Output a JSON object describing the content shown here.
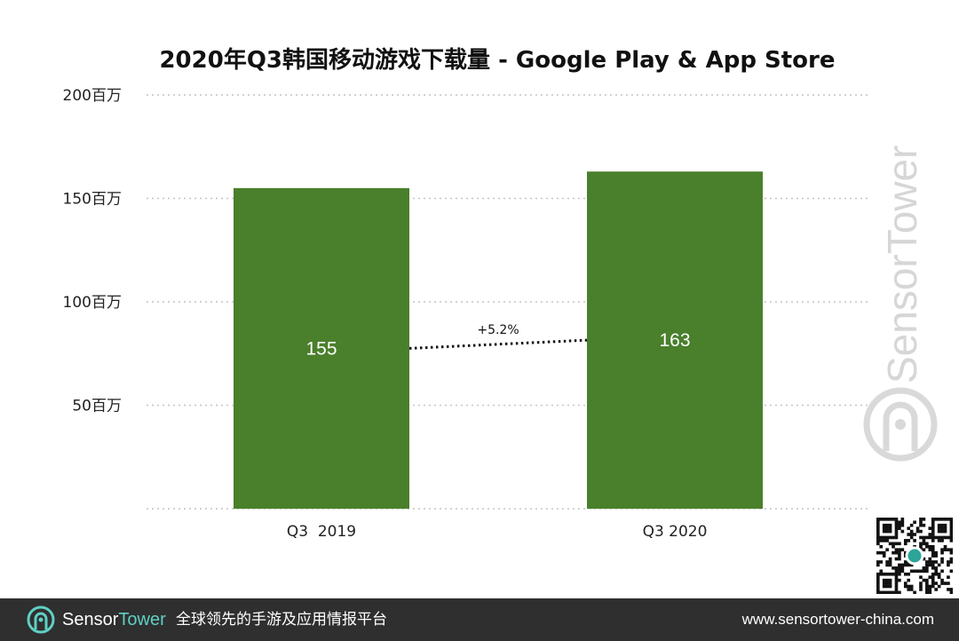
{
  "chart_data": {
    "type": "bar",
    "title": "2020年Q3韩国移动游戏下载量 - Google Play & App Store",
    "categories": [
      "Q3  2019",
      "Q3 2020"
    ],
    "values": [
      155,
      163
    ],
    "data_labels": [
      "155",
      "163"
    ],
    "ylim": [
      0,
      200
    ],
    "yticks": [
      50,
      100,
      150,
      200
    ],
    "ytick_labels": [
      "50百万",
      "100百万",
      "150百万",
      "200百万"
    ],
    "xlabel": "",
    "ylabel": "",
    "annotation": "+5.2%",
    "grid": "dotted-horizontal",
    "bar_color": "#4a7f2c"
  },
  "watermark": "SensorTower",
  "footer": {
    "brand_part1": "Sensor",
    "brand_part2": "Tower",
    "tagline": "全球领先的手游及应用情报平台",
    "url": "www.sensortower-china.com"
  },
  "colors": {
    "bar": "#4a7f2c",
    "footer_bg": "#2f2f2f",
    "brand_accent": "#5fd0c4"
  },
  "icons": {
    "footer_logo": "sensortower-logo-icon",
    "qr": "qr-code-icon",
    "watermark_logo": "sensortower-logo-icon"
  }
}
